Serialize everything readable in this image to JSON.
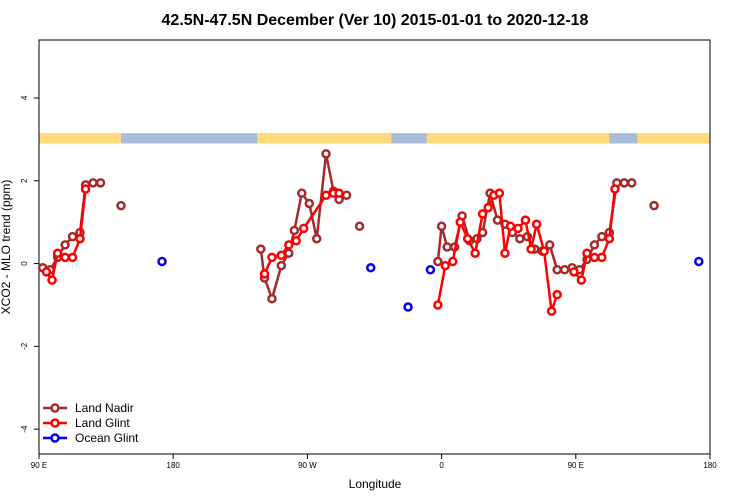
{
  "chart_data": {
    "type": "line",
    "title": "42.5N-47.5N December (Ver 10)   2015-01-01 to 2020-12-18",
    "xlabel": "Longitude",
    "ylabel": "XCO2 - MLO trend (ppm)",
    "xlim": [
      0,
      360
    ],
    "ylim": [
      -4.6,
      5.4
    ],
    "x_ticks": [
      {
        "value": 0,
        "label": "90 E"
      },
      {
        "value": 72,
        "label": "180"
      },
      {
        "value": 144,
        "label": "90 W"
      },
      {
        "value": 216,
        "label": "0"
      },
      {
        "value": 288,
        "label": "90 E"
      },
      {
        "value": 360,
        "label": "180"
      }
    ],
    "y_ticks": [
      {
        "value": -4,
        "label": "-4"
      },
      {
        "value": -2,
        "label": "-2"
      },
      {
        "value": 0,
        "label": "0"
      },
      {
        "value": 2,
        "label": "2"
      },
      {
        "value": 4,
        "label": "4"
      }
    ],
    "land_ocean_band": {
      "y_range": [
        2.9,
        3.15
      ],
      "land_color": "#ffd97a",
      "ocean_color": "#a7bcd9",
      "land_segments": [
        [
          0,
          44
        ],
        [
          117,
          189
        ],
        [
          208,
          306
        ],
        [
          321,
          360
        ]
      ]
    },
    "series": [
      {
        "name": "Land Nadir",
        "color": "#a52a2a",
        "segments": [
          [
            [
              2,
              -0.1
            ],
            [
              6,
              -0.15
            ],
            [
              10,
              0.15
            ],
            [
              14,
              0.45
            ],
            [
              18,
              0.65
            ],
            [
              22,
              0.75
            ],
            [
              25,
              1.9
            ],
            [
              29,
              1.95
            ],
            [
              33,
              1.95
            ]
          ],
          [
            [
              44,
              1.4
            ]
          ],
          [
            [
              119,
              0.35
            ],
            [
              121,
              -0.35
            ],
            [
              125,
              -0.85
            ],
            [
              130,
              -0.05
            ],
            [
              134,
              0.25
            ],
            [
              137,
              0.8
            ],
            [
              141,
              1.7
            ],
            [
              145,
              1.45
            ],
            [
              149,
              0.6
            ],
            [
              154,
              2.65
            ],
            [
              158,
              1.75
            ],
            [
              161,
              1.55
            ],
            [
              165,
              1.65
            ]
          ],
          [
            [
              172,
              0.9
            ]
          ],
          [
            [
              214,
              0.05
            ],
            [
              216,
              0.9
            ],
            [
              219,
              0.4
            ],
            [
              223,
              0.4
            ],
            [
              227,
              1.15
            ],
            [
              231,
              0.55
            ],
            [
              235,
              0.6
            ],
            [
              238,
              0.75
            ],
            [
              242,
              1.7
            ],
            [
              246,
              1.05
            ],
            [
              250,
              0.95
            ],
            [
              254,
              0.75
            ],
            [
              258,
              0.6
            ],
            [
              262,
              0.65
            ],
            [
              266,
              0.35
            ],
            [
              270,
              0.3
            ],
            [
              274,
              0.45
            ],
            [
              278,
              -0.15
            ],
            [
              282,
              -0.15
            ],
            [
              286,
              -0.1
            ],
            [
              290,
              -0.15
            ],
            [
              294,
              0.1
            ],
            [
              298,
              0.45
            ],
            [
              302,
              0.65
            ],
            [
              306,
              0.75
            ],
            [
              310,
              1.95
            ],
            [
              314,
              1.95
            ],
            [
              318,
              1.95
            ]
          ],
          [
            [
              330,
              1.4
            ]
          ]
        ]
      },
      {
        "name": "Land Glint",
        "color": "#ff0000",
        "segments": [
          [
            [
              4,
              -0.2
            ],
            [
              7,
              -0.4
            ],
            [
              10,
              0.25
            ],
            [
              14,
              0.15
            ],
            [
              18,
              0.15
            ],
            [
              22,
              0.6
            ],
            [
              25,
              1.8
            ]
          ],
          [
            [
              121,
              -0.25
            ],
            [
              125,
              0.15
            ],
            [
              130,
              0.2
            ],
            [
              134,
              0.45
            ],
            [
              138,
              0.55
            ],
            [
              142,
              0.85
            ],
            [
              154,
              1.65
            ],
            [
              158,
              1.7
            ],
            [
              161,
              1.7
            ]
          ],
          [
            [
              214,
              -1.0
            ],
            [
              218,
              -0.05
            ],
            [
              222,
              0.05
            ],
            [
              226,
              1.0
            ],
            [
              230,
              0.6
            ],
            [
              234,
              0.25
            ],
            [
              238,
              1.2
            ],
            [
              241,
              1.35
            ],
            [
              244,
              1.65
            ],
            [
              247,
              1.7
            ],
            [
              250,
              0.25
            ],
            [
              253,
              0.9
            ],
            [
              257,
              0.85
            ],
            [
              261,
              1.05
            ],
            [
              264,
              0.35
            ],
            [
              267,
              0.95
            ],
            [
              271,
              0.3
            ],
            [
              275,
              -1.15
            ],
            [
              278,
              -0.75
            ]
          ],
          [
            [
              287,
              -0.2
            ],
            [
              291,
              -0.4
            ],
            [
              294,
              0.25
            ],
            [
              298,
              0.15
            ],
            [
              302,
              0.15
            ],
            [
              306,
              0.6
            ],
            [
              309,
              1.8
            ]
          ]
        ]
      },
      {
        "name": "Ocean Glint",
        "color": "#0000ee",
        "segments": [
          [
            [
              66,
              0.05
            ]
          ],
          [
            [
              178,
              -0.1
            ]
          ],
          [
            [
              198,
              -1.05
            ]
          ],
          [
            [
              210,
              -0.15
            ]
          ],
          [
            [
              354,
              0.05
            ]
          ]
        ]
      }
    ],
    "legend": [
      "Land Nadir",
      "Land Glint",
      "Ocean Glint"
    ],
    "legend_position": "bottom-left",
    "grid": false
  }
}
